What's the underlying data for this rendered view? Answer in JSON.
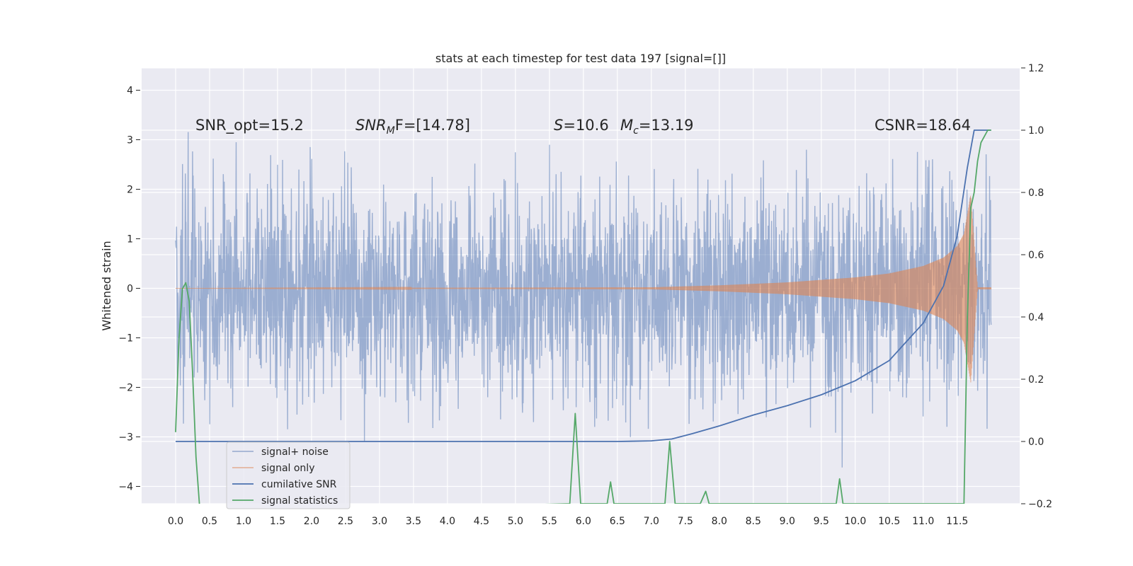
{
  "chart_data": {
    "type": "line",
    "title": "stats at each timestep for test data 197 [signal=[]]",
    "ylabel": "Whitened strain",
    "xlim": [
      -0.5,
      12.42
    ],
    "ylim": [
      -4.35,
      4.45
    ],
    "ylim_right": [
      -0.2,
      1.2
    ],
    "grid": true,
    "legend_position": "lower-left",
    "x_ticks": [
      "0.0",
      "0.5",
      "1.0",
      "1.5",
      "2.0",
      "2.5",
      "3.0",
      "3.5",
      "4.0",
      "4.5",
      "5.0",
      "5.5",
      "6.0",
      "6.5",
      "7.0",
      "7.5",
      "8.0",
      "8.5",
      "9.0",
      "9.5",
      "10.0",
      "10.5",
      "11.0",
      "11.5"
    ],
    "y_ticks_left": [
      "4",
      "3",
      "2",
      "1",
      "0",
      "−1",
      "−2",
      "−3",
      "−4"
    ],
    "y_ticks_right": [
      "1.2",
      "1.0",
      "0.8",
      "0.6",
      "0.4",
      "0.2",
      "0.0",
      "−0.2"
    ],
    "annotations": {
      "snr_opt": "SNR_opt=15.2",
      "snr_mf_var": "SNR",
      "snr_mf_sub": "M",
      "snr_mf_rest": "F=[14.78]",
      "s_var": "S",
      "s_rest": "=10.6",
      "mc_var": "M",
      "mc_sub": "c",
      "mc_rest": "=13.19",
      "csnr": "CSNR=18.64"
    },
    "series": [
      {
        "name": "signal+ noise",
        "color": "#4c72b0",
        "axis": "left",
        "note": "whitened noise, approximately Gaussian, std ≈ 1, spanning t = 0 to 12"
      },
      {
        "name": "signal only",
        "color": "#dd8452",
        "axis": "left",
        "chirp_envelope": {
          "x": [
            0,
            7.0,
            8.0,
            9.0,
            10.0,
            10.5,
            11.0,
            11.3,
            11.5,
            11.6,
            11.7,
            11.8,
            12.0
          ],
          "amplitude": [
            0,
            0.02,
            0.06,
            0.12,
            0.22,
            0.3,
            0.45,
            0.62,
            0.85,
            1.1,
            1.9,
            0.02,
            0.02
          ]
        }
      },
      {
        "name": "cumilative SNR",
        "color": "#4c72b0",
        "axis": "right",
        "x": [
          0,
          6.5,
          7.0,
          7.3,
          7.6,
          8.0,
          8.5,
          9.0,
          9.5,
          10.0,
          10.5,
          11.0,
          11.3,
          11.5,
          11.65,
          11.75,
          12.0
        ],
        "y": [
          0.0,
          0.0,
          0.002,
          0.008,
          0.025,
          0.05,
          0.085,
          0.115,
          0.15,
          0.195,
          0.26,
          0.38,
          0.5,
          0.66,
          0.88,
          1.0,
          1.0
        ]
      },
      {
        "name": "signal statistics",
        "color": "#55a868",
        "axis": "right",
        "x": [
          0,
          0.05,
          0.1,
          0.15,
          0.2,
          0.25,
          0.3,
          0.35,
          0.38,
          5.8,
          5.88,
          5.96,
          6.35,
          6.4,
          6.45,
          7.2,
          7.27,
          7.35,
          7.72,
          7.8,
          7.85,
          9.72,
          9.77,
          9.82,
          11.6,
          11.65,
          11.7,
          11.75,
          11.8,
          11.85,
          11.9,
          11.95,
          12.0
        ],
        "y": [
          0.03,
          0.33,
          0.49,
          0.51,
          0.45,
          0.22,
          -0.05,
          -0.2,
          -0.23,
          -0.2,
          0.09,
          -0.2,
          -0.2,
          -0.13,
          -0.2,
          -0.2,
          0.0,
          -0.2,
          -0.2,
          -0.16,
          -0.2,
          -0.2,
          -0.12,
          -0.2,
          -0.2,
          0.4,
          0.75,
          0.8,
          0.9,
          0.96,
          0.98,
          1.0,
          1.0
        ]
      }
    ]
  }
}
